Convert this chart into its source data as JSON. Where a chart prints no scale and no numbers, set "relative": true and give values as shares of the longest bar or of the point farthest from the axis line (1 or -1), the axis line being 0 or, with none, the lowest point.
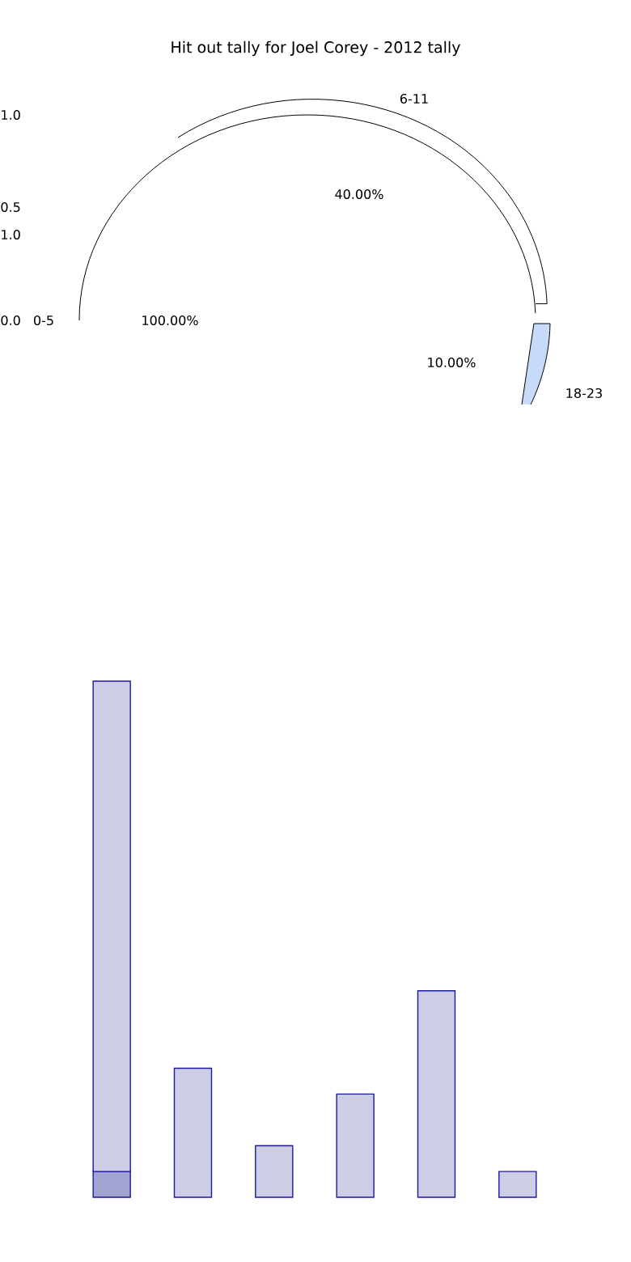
{
  "chart_data": [
    {
      "type": "other",
      "title": "Hit out tally for Joel Corey - 2012 tally",
      "annotations": [
        "6-11",
        "40.00%",
        "0-5",
        "100.00%",
        "10.00%",
        "18-23",
        "1.0",
        "0.5",
        "1.0",
        "0.0"
      ]
    },
    {
      "type": "bar",
      "relative": true,
      "stacked": true,
      "categories": [
        null,
        null,
        null,
        null,
        null,
        null
      ],
      "series": [
        {
          "color": "#a3a3d1",
          "values": [
            0.05,
            0,
            0,
            0,
            0,
            0
          ]
        },
        {
          "color": "#cdcde6",
          "values": [
            0.95,
            0.25,
            0.1,
            0.2,
            0.4,
            0.05
          ]
        }
      ]
    }
  ]
}
